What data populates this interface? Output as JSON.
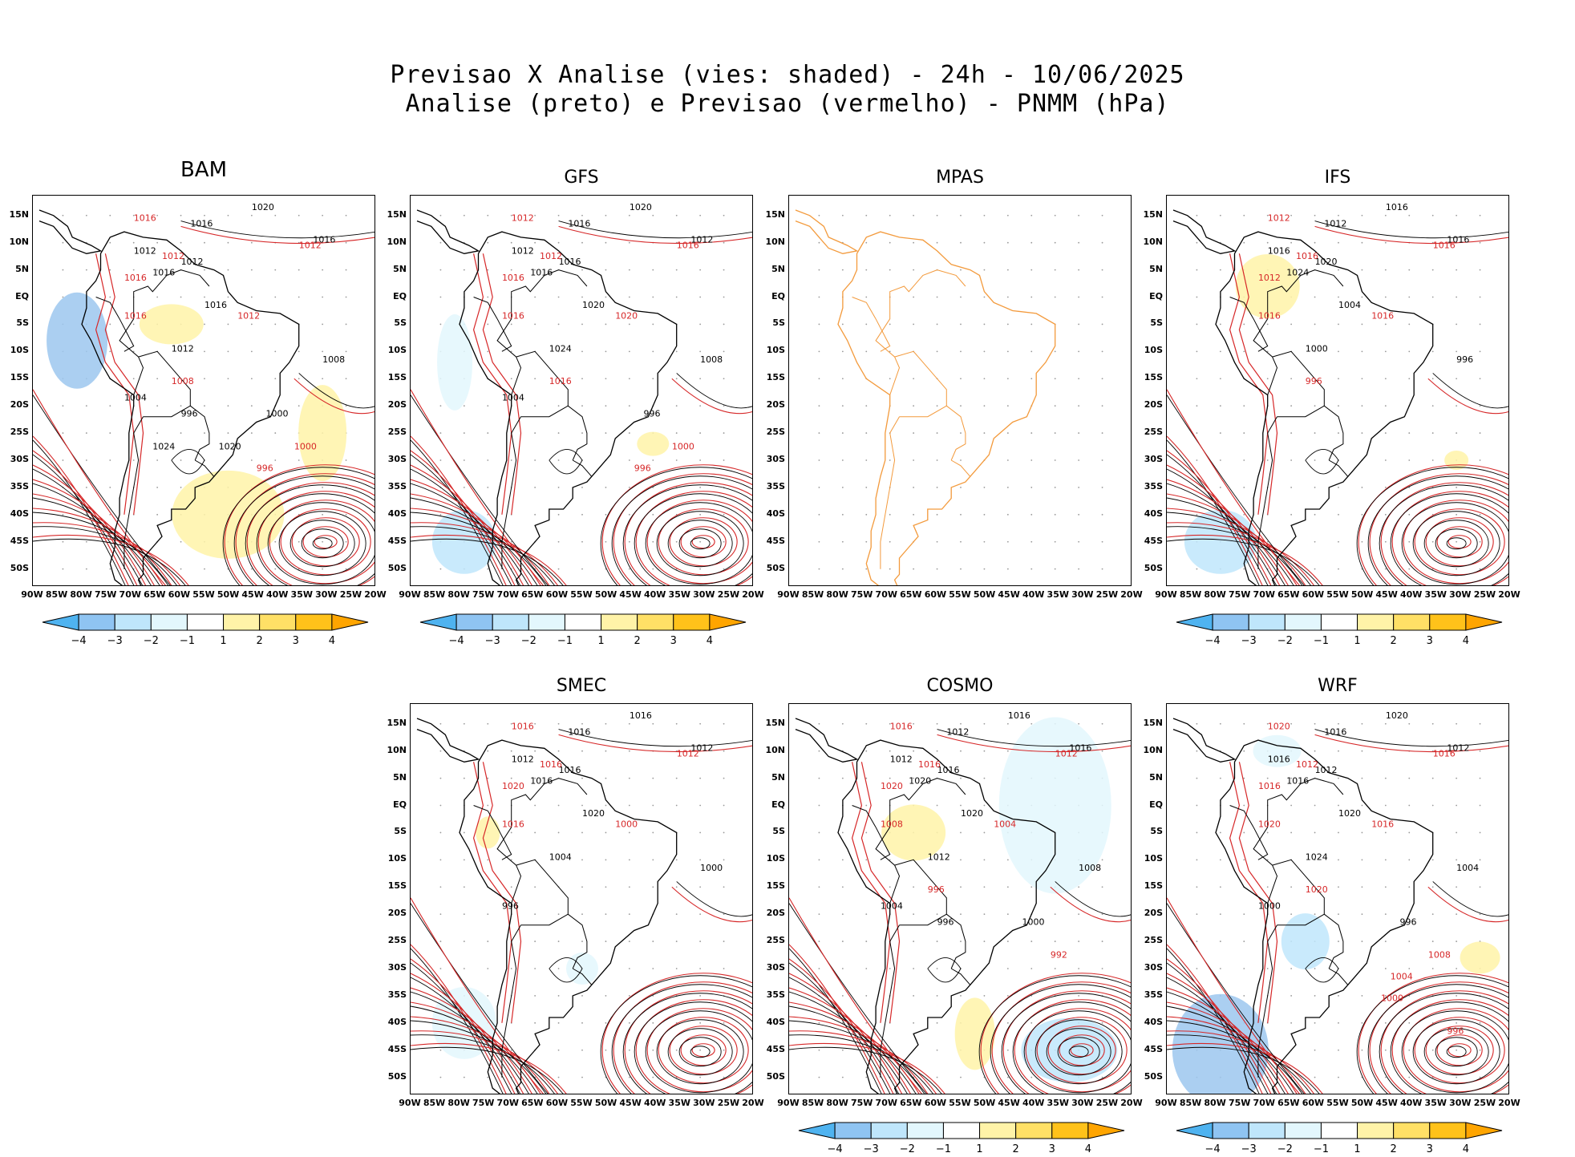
{
  "figure": {
    "title_line1": "Previsao X Analise (vies: shaded) - 24h - 10/06/2025",
    "title_line2": "Analise (preto) e Previsao (vermelho) - PNMM (hPa)"
  },
  "axes": {
    "lat_labels": [
      "15N",
      "10N",
      "5N",
      "EQ",
      "5S",
      "10S",
      "15S",
      "20S",
      "25S",
      "30S",
      "35S",
      "40S",
      "45S",
      "50S"
    ],
    "lon_labels": [
      "90W",
      "85W",
      "80W",
      "75W",
      "70W",
      "65W",
      "60W",
      "55W",
      "50W",
      "45W",
      "40W",
      "35W",
      "30W",
      "25W",
      "20W"
    ]
  },
  "colorbar": {
    "labels": [
      "-4",
      "-3",
      "-2",
      "-1",
      "1",
      "2",
      "3",
      "4"
    ],
    "colors": [
      "#4fb3f0",
      "#8fc4f2",
      "#bfe6fb",
      "#e3f7fd",
      "#ffffff",
      "#fff3a8",
      "#ffe066",
      "#ffc21a",
      "#ffa500"
    ]
  },
  "colors": {
    "analysis": "#000000",
    "forecast": "#d62728",
    "coast_mpas": "#f39a3c"
  },
  "panels": [
    {
      "id": "bam",
      "name": "BAM",
      "has_colorbar": true,
      "labels_black": [
        "1020",
        "1016",
        "1016",
        "1012",
        "1012",
        "1016",
        "1016",
        "1012",
        "1008",
        "1004",
        "1000",
        "996",
        "1024",
        "1020"
      ],
      "labels_red": [
        "1016",
        "1012",
        "1012",
        "1016",
        "1016",
        "1012",
        "1008",
        "1000",
        "996"
      ]
    },
    {
      "id": "gfs",
      "name": "GFS",
      "has_colorbar": true,
      "labels_black": [
        "1020",
        "1016",
        "1012",
        "1012",
        "1016",
        "1016",
        "1020",
        "1024",
        "1008",
        "1004",
        "996"
      ],
      "labels_red": [
        "1012",
        "1016",
        "1012",
        "1016",
        "1016",
        "1020",
        "1016",
        "1000",
        "996"
      ]
    },
    {
      "id": "mpas",
      "name": "MPAS",
      "has_colorbar": false,
      "labels_black": [],
      "labels_red": []
    },
    {
      "id": "ifs",
      "name": "IFS",
      "has_colorbar": true,
      "labels_black": [
        "1016",
        "1012",
        "1016",
        "1016",
        "1020",
        "1024",
        "1004",
        "1000",
        "996"
      ],
      "labels_red": [
        "1012",
        "1016",
        "1016",
        "1012",
        "1016",
        "1016",
        "996"
      ]
    },
    {
      "id": "smec",
      "name": "SMEC",
      "has_colorbar": false,
      "labels_black": [
        "1016",
        "1016",
        "1012",
        "1012",
        "1016",
        "1016",
        "1020",
        "1004",
        "1000",
        "996"
      ],
      "labels_red": [
        "1016",
        "1012",
        "1016",
        "1020",
        "1016",
        "1000"
      ]
    },
    {
      "id": "cosmo",
      "name": "COSMO",
      "has_colorbar": true,
      "labels_black": [
        "1016",
        "1012",
        "1016",
        "1012",
        "1016",
        "1020",
        "1020",
        "1012",
        "1008",
        "1004",
        "1000",
        "996"
      ],
      "labels_red": [
        "1016",
        "1012",
        "1016",
        "1020",
        "1008",
        "1004",
        "996",
        "992"
      ]
    },
    {
      "id": "wrf",
      "name": "WRF",
      "has_colorbar": true,
      "labels_black": [
        "1020",
        "1016",
        "1012",
        "1016",
        "1012",
        "1016",
        "1020",
        "1024",
        "1004",
        "1000",
        "996"
      ],
      "labels_red": [
        "1020",
        "1016",
        "1012",
        "1016",
        "1020",
        "1016",
        "1020",
        "1008",
        "1004",
        "1000",
        "996"
      ]
    }
  ]
}
